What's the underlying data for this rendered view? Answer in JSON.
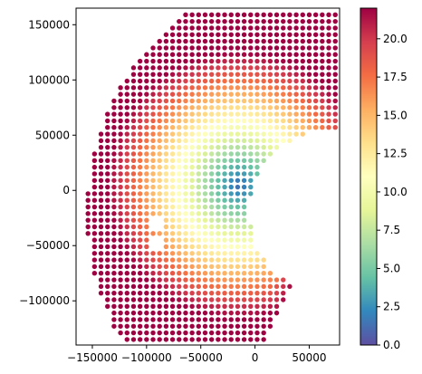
{
  "chart_data": {
    "type": "scatter",
    "title": "",
    "xlabel": "",
    "ylabel": "",
    "xlim": [
      -165000,
      78000
    ],
    "ylim": [
      -140000,
      165000
    ],
    "x_ticks": [
      {
        "value": -150000,
        "label": "−150000"
      },
      {
        "value": -100000,
        "label": "−100000"
      },
      {
        "value": -50000,
        "label": "−50000"
      },
      {
        "value": 0,
        "label": "0"
      },
      {
        "value": 50000,
        "label": "50000"
      }
    ],
    "y_ticks": [
      {
        "value": -100000,
        "label": "−100000"
      },
      {
        "value": -50000,
        "label": "−50000"
      },
      {
        "value": 0,
        "label": "0"
      },
      {
        "value": 50000,
        "label": "50000"
      },
      {
        "value": 100000,
        "label": "100000"
      },
      {
        "value": 150000,
        "label": "150000"
      }
    ],
    "colorbar": {
      "colormap": "Spectral_r",
      "min": 0,
      "max": 22,
      "ticks": [
        {
          "value": 0.0,
          "label": "0.0"
        },
        {
          "value": 2.5,
          "label": "2.5"
        },
        {
          "value": 5.0,
          "label": "5.0"
        },
        {
          "value": 7.5,
          "label": "7.5"
        },
        {
          "value": 10.0,
          "label": "10.0"
        },
        {
          "value": 12.5,
          "label": "12.5"
        },
        {
          "value": 15.0,
          "label": "15.0"
        },
        {
          "value": 17.5,
          "label": "17.5"
        },
        {
          "value": 20.0,
          "label": "20.0"
        }
      ],
      "stops": [
        "#5e4fa2",
        "#3288bd",
        "#66c2a5",
        "#abdda4",
        "#e6f598",
        "#ffffbf",
        "#fee08b",
        "#fdae61",
        "#f46d43",
        "#d53e4f",
        "#9e0142"
      ]
    },
    "scatter_field": {
      "description": "Dense grid of points filling a fan-shaped sector; value rises from ~1 near (-15000, 0) to ~22 at the outer rim.",
      "sector_center": [
        70000,
        -20000
      ],
      "inner_radius": 75000,
      "outer_radius": 225000,
      "angle_start_deg": 40,
      "angle_end_deg": 242,
      "grid_spacing": 6000,
      "low_center": [
        -15000,
        5000
      ],
      "low_value": 1.0,
      "high_value": 22.0,
      "gaps": [
        [
          -92000,
          -30000
        ],
        [
          -90000,
          -50000
        ]
      ]
    }
  }
}
